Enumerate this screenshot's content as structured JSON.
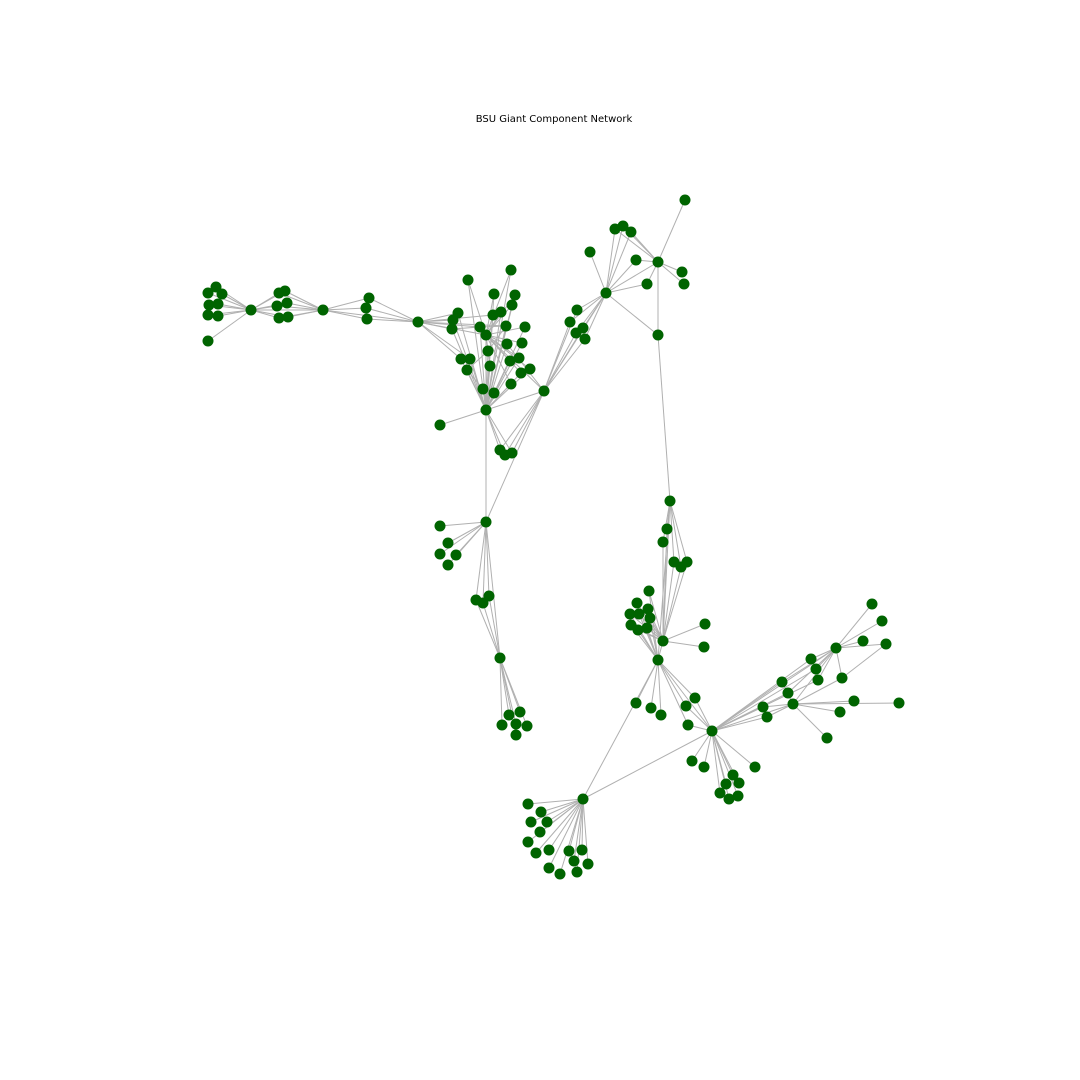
{
  "title": "BSU Giant Component Network",
  "colors": {
    "node": "#006400",
    "edge": "#b0b0b0",
    "background": "#ffffff"
  }
}
